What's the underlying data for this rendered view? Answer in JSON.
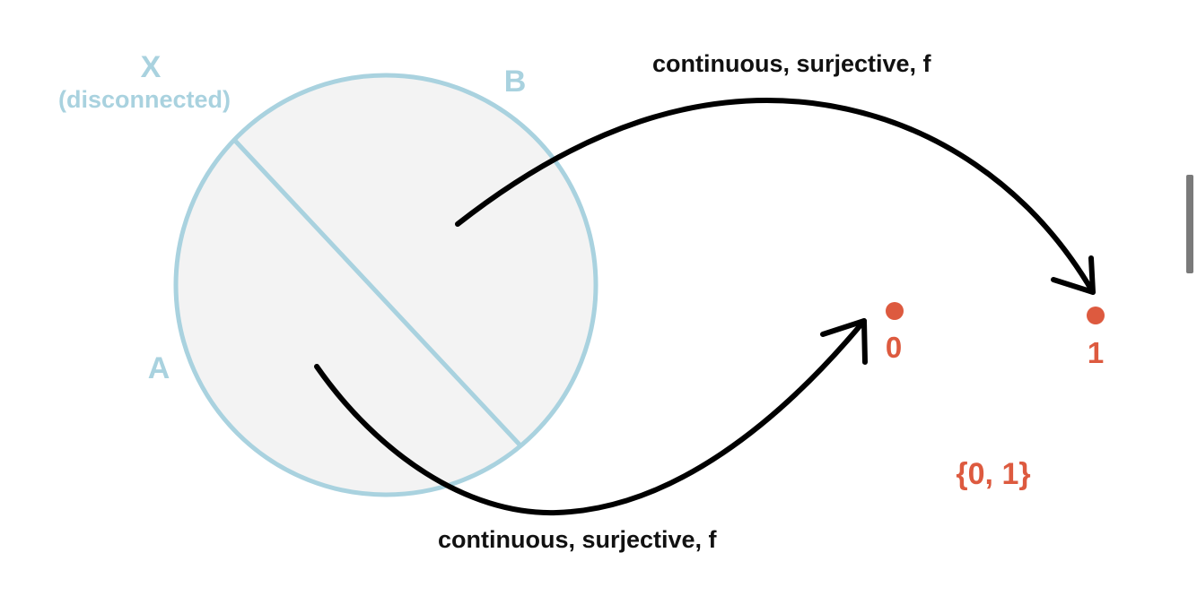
{
  "space": {
    "name": "X",
    "qualifier": "(disconnected)",
    "subset_a": "A",
    "subset_b": "B"
  },
  "maps": {
    "upper_label": "continuous, surjective, f",
    "lower_label": "continuous, surjective, f"
  },
  "codomain": {
    "point_0": "0",
    "point_1": "1",
    "set_label": "{0, 1}"
  },
  "colors": {
    "space_outline": "#a9d2df",
    "space_fill": "#f3f3f3",
    "arrow": "#000000",
    "codomain": "#dd5a3f"
  }
}
